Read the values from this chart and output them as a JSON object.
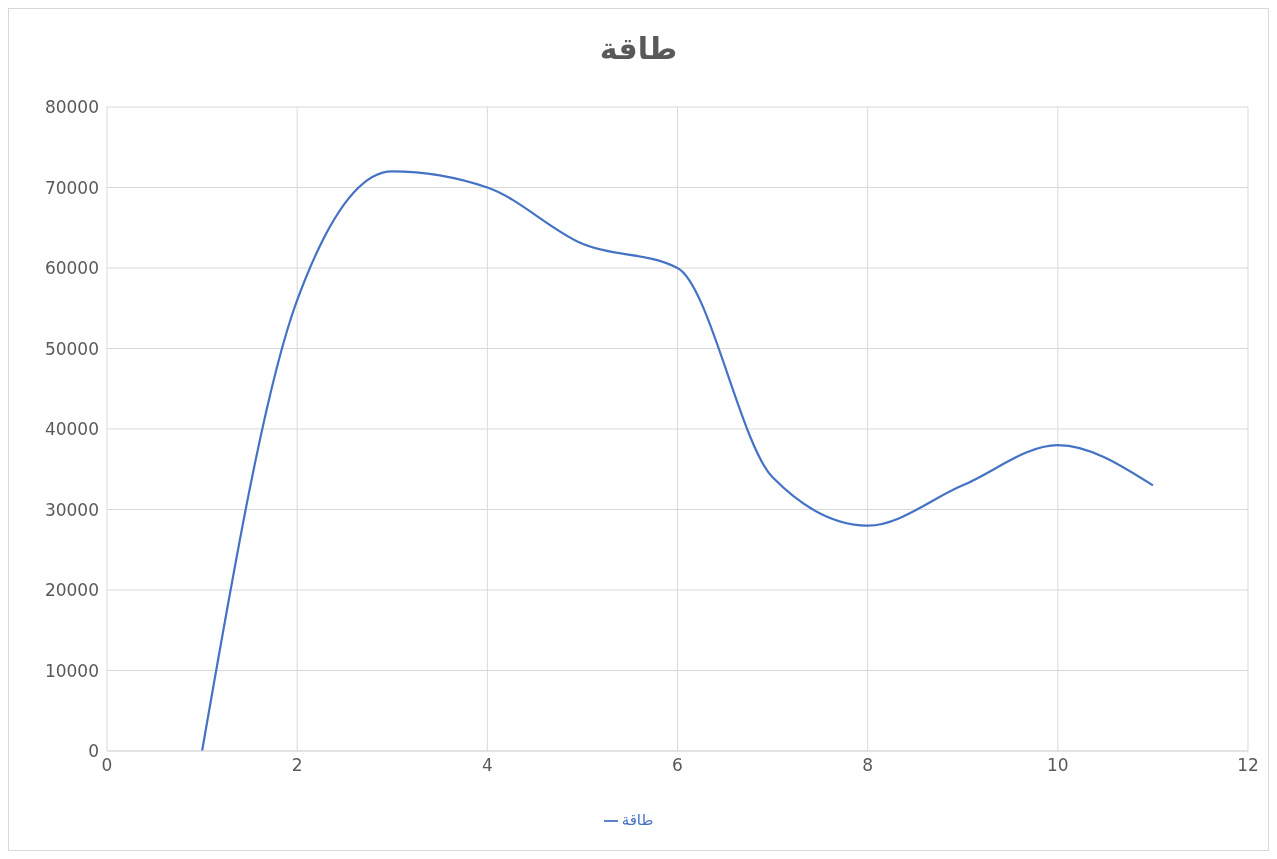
{
  "chart_data": {
    "type": "line",
    "title": "طاقة",
    "x": [
      1,
      2,
      3,
      4,
      5,
      6,
      7,
      8,
      9,
      10,
      11
    ],
    "series": [
      {
        "name": "طاقة",
        "color": "#4472c4",
        "values": [
          0,
          56000,
          72000,
          70000,
          63000,
          60000,
          34000,
          28000,
          33000,
          38000,
          33000
        ]
      }
    ],
    "xlim": [
      0,
      12
    ],
    "xticks": [
      0,
      2,
      4,
      6,
      8,
      10,
      12
    ],
    "ylim": [
      0,
      80000
    ],
    "yticks": [
      0,
      10000,
      20000,
      30000,
      40000,
      50000,
      60000,
      70000,
      80000
    ],
    "grid": true,
    "legend": "bottom",
    "marker": "none",
    "line_style": "solid"
  }
}
